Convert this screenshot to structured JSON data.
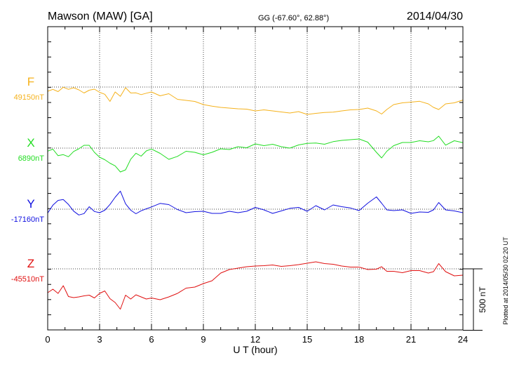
{
  "chart_data": {
    "type": "line",
    "title": "Mawson (MAW)  [GA]",
    "subtitle": "GG (-67.60°,  62.88°)",
    "date": "2014/04/30",
    "xlabel": "U T (hour)",
    "xlim": [
      0,
      24
    ],
    "xticks": [
      "0",
      "3",
      "6",
      "9",
      "12",
      "15",
      "18",
      "21",
      "24"
    ],
    "scale_label": "500 nT",
    "scale_nT": 500,
    "plotted_note": "Plotted at 2014/05/30 02:20 UT",
    "grid": true,
    "series": [
      {
        "name": "F",
        "baseline_label": "49150nT",
        "baseline_nT": 49150,
        "color": "#f5b21c",
        "x": [
          0,
          0.3,
          0.6,
          0.9,
          1.2,
          1.5,
          1.8,
          2.1,
          2.4,
          2.7,
          3.0,
          3.3,
          3.6,
          3.9,
          4.2,
          4.5,
          4.8,
          5.1,
          5.4,
          5.7,
          6.0,
          6.5,
          7.0,
          7.5,
          8.0,
          8.5,
          9.0,
          9.5,
          10,
          10.5,
          11,
          11.5,
          12,
          12.5,
          13,
          13.5,
          14,
          14.5,
          15,
          15.5,
          16,
          16.5,
          17,
          17.5,
          18,
          18.5,
          19,
          19.3,
          19.6,
          20,
          20.5,
          21,
          21.5,
          22,
          22.3,
          22.6,
          23,
          23.5,
          24
        ],
        "y": [
          -24,
          -13,
          -26,
          -1,
          -13,
          -4,
          -16,
          -34,
          -18,
          -12,
          -30,
          -41,
          -82,
          -28,
          -53,
          -4,
          -34,
          -33,
          -43,
          -35,
          -28,
          -50,
          -38,
          -70,
          -76,
          -82,
          -100,
          -109,
          -116,
          -120,
          -124,
          -126,
          -136,
          -130,
          -136,
          -142,
          -148,
          -140,
          -156,
          -150,
          -145,
          -143,
          -136,
          -130,
          -128,
          -120,
          -136,
          -154,
          -128,
          -100,
          -90,
          -86,
          -81,
          -96,
          -116,
          -128,
          -96,
          -90,
          -74
        ]
      },
      {
        "name": "X",
        "baseline_label": "6890nT",
        "baseline_nT": 6890,
        "color": "#22dd22",
        "x": [
          0,
          0.3,
          0.6,
          0.9,
          1.2,
          1.5,
          1.8,
          2.1,
          2.4,
          2.7,
          3.0,
          3.3,
          3.6,
          3.9,
          4.2,
          4.5,
          4.8,
          5.1,
          5.4,
          5.7,
          6.0,
          6.5,
          7.0,
          7.5,
          8.0,
          8.5,
          9.0,
          9.5,
          10,
          10.5,
          11,
          11.5,
          12,
          12.5,
          13,
          13.5,
          14,
          14.5,
          15,
          15.5,
          16,
          16.5,
          17,
          17.5,
          18,
          18.5,
          19,
          19.3,
          19.6,
          20,
          20.5,
          21,
          21.5,
          22,
          22.3,
          22.6,
          23,
          23.5,
          24
        ],
        "y": [
          -17,
          -6,
          -43,
          -37,
          -49,
          -19,
          -4,
          16,
          16,
          -24,
          -52,
          -66,
          -86,
          -101,
          -136,
          -124,
          -63,
          -29,
          -46,
          -16,
          -5,
          -30,
          -64,
          -47,
          -18,
          -24,
          -38,
          -24,
          -4,
          -8,
          8,
          2,
          24,
          14,
          22,
          8,
          0,
          18,
          27,
          29,
          22,
          37,
          44,
          48,
          52,
          34,
          -24,
          -56,
          -18,
          14,
          32,
          32,
          42,
          36,
          43,
          68,
          17,
          42,
          31
        ]
      },
      {
        "name": "Y",
        "baseline_label": "-17160nT",
        "baseline_nT": -17160,
        "color": "#1010e0",
        "x": [
          0,
          0.3,
          0.6,
          0.9,
          1.2,
          1.5,
          1.8,
          2.1,
          2.4,
          2.7,
          3.0,
          3.3,
          3.6,
          3.9,
          4.2,
          4.5,
          4.8,
          5.1,
          5.4,
          5.7,
          6.0,
          6.5,
          7.0,
          7.5,
          8.0,
          8.5,
          9.0,
          9.5,
          10,
          10.5,
          11,
          11.5,
          12,
          12.5,
          13,
          13.5,
          14,
          14.5,
          15,
          15.5,
          16,
          16.5,
          17,
          17.5,
          18,
          18.5,
          19,
          19.3,
          19.6,
          20,
          20.5,
          21,
          21.5,
          22,
          22.3,
          22.6,
          23,
          23.5,
          24
        ],
        "y": [
          -22,
          23,
          50,
          55,
          27,
          -11,
          -33,
          -25,
          14,
          -13,
          -20,
          -6,
          27,
          68,
          103,
          31,
          -6,
          -26,
          -9,
          2,
          13,
          33,
          26,
          -2,
          -20,
          -14,
          -12,
          -24,
          -24,
          -12,
          -20,
          -12,
          10,
          -4,
          -24,
          -10,
          5,
          10,
          -12,
          20,
          -4,
          24,
          14,
          7,
          -8,
          34,
          70,
          34,
          -4,
          -8,
          -4,
          -24,
          -16,
          -18,
          -4,
          38,
          -4,
          -10,
          -20
        ]
      },
      {
        "name": "Z",
        "baseline_label": "-45510nT",
        "baseline_nT": -45510,
        "color": "#e01010",
        "x": [
          0,
          0.3,
          0.6,
          0.9,
          1.2,
          1.5,
          1.8,
          2.1,
          2.4,
          2.7,
          3.0,
          3.3,
          3.6,
          3.9,
          4.2,
          4.5,
          4.8,
          5.1,
          5.4,
          5.7,
          6.0,
          6.5,
          7.0,
          7.5,
          8.0,
          8.5,
          9.0,
          9.5,
          10,
          10.5,
          11,
          11.5,
          12,
          12.5,
          13,
          13.5,
          14,
          14.5,
          15,
          15.5,
          16,
          16.5,
          17,
          17.5,
          18,
          18.5,
          19,
          19.3,
          19.6,
          20,
          20.5,
          21,
          21.5,
          22,
          22.3,
          22.6,
          23,
          23.5,
          24
        ],
        "y": [
          -136,
          -116,
          -140,
          -96,
          -158,
          -164,
          -160,
          -154,
          -150,
          -166,
          -140,
          -126,
          -170,
          -192,
          -230,
          -150,
          -172,
          -148,
          -160,
          -172,
          -166,
          -176,
          -160,
          -140,
          -110,
          -104,
          -84,
          -68,
          -24,
          -4,
          4,
          12,
          16,
          18,
          22,
          14,
          18,
          24,
          32,
          40,
          30,
          26,
          16,
          10,
          10,
          -4,
          -2,
          12,
          -14,
          -14,
          -22,
          -10,
          -10,
          -24,
          -16,
          30,
          -16,
          -40,
          -36
        ]
      }
    ]
  }
}
